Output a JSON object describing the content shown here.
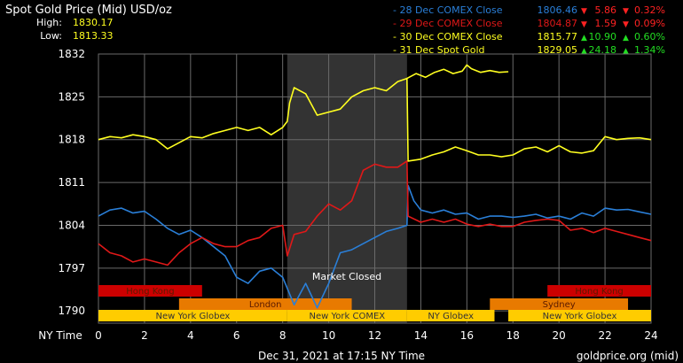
{
  "header": {
    "title": "Spot Gold Price (Mid) USD/oz",
    "high_label": "High:",
    "high_value": "1830.17",
    "low_label": "Low:",
    "low_value": "1813.33"
  },
  "legend": [
    {
      "label": "- 28 Dec COMEX Close",
      "price": "1806.46",
      "change": "5.86",
      "pct": "0.32%",
      "dir": "down",
      "color": "#2a7fd8"
    },
    {
      "label": "- 29 Dec COMEX Close",
      "price": "1804.87",
      "change": "1.59",
      "pct": "0.09%",
      "dir": "down",
      "color": "#e01818"
    },
    {
      "label": "- 30 Dec COMEX Close",
      "price": "1815.77",
      "change": "10.90",
      "pct": "0.60%",
      "dir": "up",
      "color": "#ffff20"
    },
    {
      "label": "- 31 Dec Spot Gold",
      "price": "1829.05",
      "change": "24.18",
      "pct": "1.34%",
      "dir": "up",
      "color": "#ffff20"
    }
  ],
  "colors": {
    "up": "#22dd22",
    "down": "#ff2222",
    "hongkong": "#cc0000",
    "london": "#e87a00",
    "newyork": "#ffcc00",
    "sydney": "#e87a00",
    "shade": "#333333"
  },
  "footer": {
    "timestamp": "Dec 31, 2021 at 17:15 NY Time",
    "source": "goldprice.org (mid)"
  },
  "market_closed_label": "Market Closed",
  "chart_data": {
    "type": "line",
    "xlabel": "NY Time",
    "x_ticks": [
      0,
      2,
      4,
      6,
      8,
      10,
      12,
      14,
      16,
      18,
      20,
      22,
      24
    ],
    "y_ticks": [
      1790,
      1797,
      1804,
      1811,
      1818,
      1825,
      1832
    ],
    "xlim": [
      0,
      24
    ],
    "ylim": [
      1788,
      1832
    ],
    "grid": true,
    "market_closed": {
      "start": 8.2,
      "end": 13.4
    },
    "sessions": [
      {
        "label": "Hong Kong",
        "start": 0,
        "end": 4.5,
        "row": 0,
        "kind": "hongkong"
      },
      {
        "label": "Hong Kong",
        "start": 19.5,
        "end": 24,
        "row": 0,
        "kind": "hongkong"
      },
      {
        "label": "London",
        "start": 3.5,
        "end": 11,
        "row": 1,
        "kind": "london"
      },
      {
        "label": "Sydney",
        "start": 17,
        "end": 23,
        "row": 1,
        "kind": "sydney"
      },
      {
        "label": "New York Globex",
        "start": 0,
        "end": 8.2,
        "row": 2,
        "kind": "newyork"
      },
      {
        "label": "New York COMEX",
        "start": 8.2,
        "end": 13.4,
        "row": 2,
        "kind": "newyork"
      },
      {
        "label": "NY Globex",
        "start": 13.4,
        "end": 17.2,
        "row": 2,
        "kind": "newyork"
      },
      {
        "label": "New York Globex",
        "start": 17.8,
        "end": 24,
        "row": 2,
        "kind": "newyork"
      }
    ],
    "series": [
      {
        "color": "#2a7fd8",
        "x": [
          0,
          0.5,
          1,
          1.5,
          2,
          2.5,
          3,
          3.5,
          4,
          4.5,
          5,
          5.5,
          6,
          6.5,
          7,
          7.5,
          8,
          8.5,
          9,
          9.5,
          10,
          10.5,
          11,
          11.5,
          12,
          12.5,
          13,
          13.4,
          13.45,
          13.7,
          14,
          14.5,
          15,
          15.5,
          16,
          16.5,
          17,
          17.5,
          18,
          18.5,
          19,
          19.5,
          20,
          20.5,
          21,
          21.5,
          22,
          22.5,
          23,
          23.5,
          24
        ],
        "y": [
          1805.5,
          1806.5,
          1806.8,
          1806,
          1806.3,
          1805,
          1803.5,
          1802.5,
          1803.2,
          1802,
          1800.5,
          1799,
          1795.5,
          1794.5,
          1796.5,
          1797,
          1795.5,
          1791,
          1794.5,
          1790.5,
          1794.5,
          1799.5,
          1800,
          1801,
          1802,
          1803,
          1803.5,
          1804,
          1810.5,
          1808,
          1806.5,
          1806,
          1806.5,
          1805.8,
          1806,
          1805,
          1805.5,
          1805.5,
          1805.3,
          1805.5,
          1805.8,
          1805.2,
          1805.5,
          1805,
          1806,
          1805.5,
          1806.8,
          1806.5,
          1806.6,
          1806.2,
          1805.8
        ]
      },
      {
        "color": "#e01818",
        "x": [
          0,
          0.5,
          1,
          1.5,
          2,
          2.5,
          3,
          3.5,
          4,
          4.5,
          5,
          5.5,
          6,
          6.5,
          7,
          7.5,
          8,
          8.2,
          8.5,
          9,
          9.5,
          10,
          10.5,
          11,
          11.5,
          12,
          12.5,
          13,
          13.4,
          13.45,
          14,
          14.5,
          15,
          15.5,
          16,
          16.5,
          17,
          17.5,
          18,
          18.5,
          19,
          19.5,
          20,
          20.5,
          21,
          21.5,
          22,
          22.5,
          23,
          23.5,
          24
        ],
        "y": [
          1801,
          1799.5,
          1799,
          1798,
          1798.5,
          1798,
          1797.5,
          1799.5,
          1801,
          1802,
          1801,
          1800.5,
          1800.5,
          1801.5,
          1802,
          1803.5,
          1804,
          1799,
          1802.5,
          1803,
          1805.5,
          1807.5,
          1806.5,
          1808,
          1813,
          1814,
          1813.5,
          1813.5,
          1814.5,
          1805.5,
          1804.5,
          1805,
          1804.5,
          1805,
          1804.2,
          1803.8,
          1804.2,
          1803.8,
          1803.8,
          1804.5,
          1804.8,
          1805,
          1804.8,
          1803.2,
          1803.5,
          1802.8,
          1803.5,
          1803,
          1802.5,
          1802,
          1801.5
        ]
      },
      {
        "color": "#ffff20",
        "x": [
          0,
          0.5,
          1,
          1.5,
          2,
          2.5,
          3,
          3.5,
          4,
          4.5,
          5,
          5.5,
          6,
          6.5,
          7,
          7.5,
          8,
          8.2,
          8.3,
          8.5,
          9,
          9.5,
          10,
          10.5,
          11,
          11.5,
          12,
          12.5,
          13,
          13.4,
          13.45,
          14,
          14.5,
          15,
          15.5,
          16,
          16.5,
          17,
          17.5,
          18,
          18.5,
          19,
          19.5,
          20,
          20.5,
          21,
          21.5,
          22,
          22.5,
          23,
          23.5,
          24
        ],
        "y": [
          1818,
          1818.5,
          1818.3,
          1818.8,
          1818.5,
          1818,
          1816.5,
          1817.5,
          1818.5,
          1818.3,
          1819,
          1819.5,
          1820,
          1819.5,
          1820,
          1818.8,
          1820,
          1821,
          1824,
          1826.5,
          1825.5,
          1822,
          1822.5,
          1823,
          1825,
          1826,
          1826.5,
          1826,
          1827.5,
          1828,
          1814.5,
          1814.8,
          1815.5,
          1816,
          1816.8,
          1816.2,
          1815.5,
          1815.5,
          1815.2,
          1815.5,
          1816.5,
          1816.8,
          1816,
          1817,
          1816,
          1815.8,
          1816.2,
          1818.5,
          1818,
          1818.2,
          1818.3,
          1818
        ]
      },
      {
        "color": "#ffff20",
        "x": [
          13.4,
          13.8,
          14.2,
          14.6,
          15,
          15.4,
          15.8,
          16,
          16.2,
          16.6,
          17,
          17.4,
          17.8
        ],
        "y": [
          1828,
          1828.8,
          1828.2,
          1829,
          1829.5,
          1828.8,
          1829.2,
          1830.2,
          1829.6,
          1829,
          1829.3,
          1829,
          1829.1
        ]
      }
    ]
  }
}
